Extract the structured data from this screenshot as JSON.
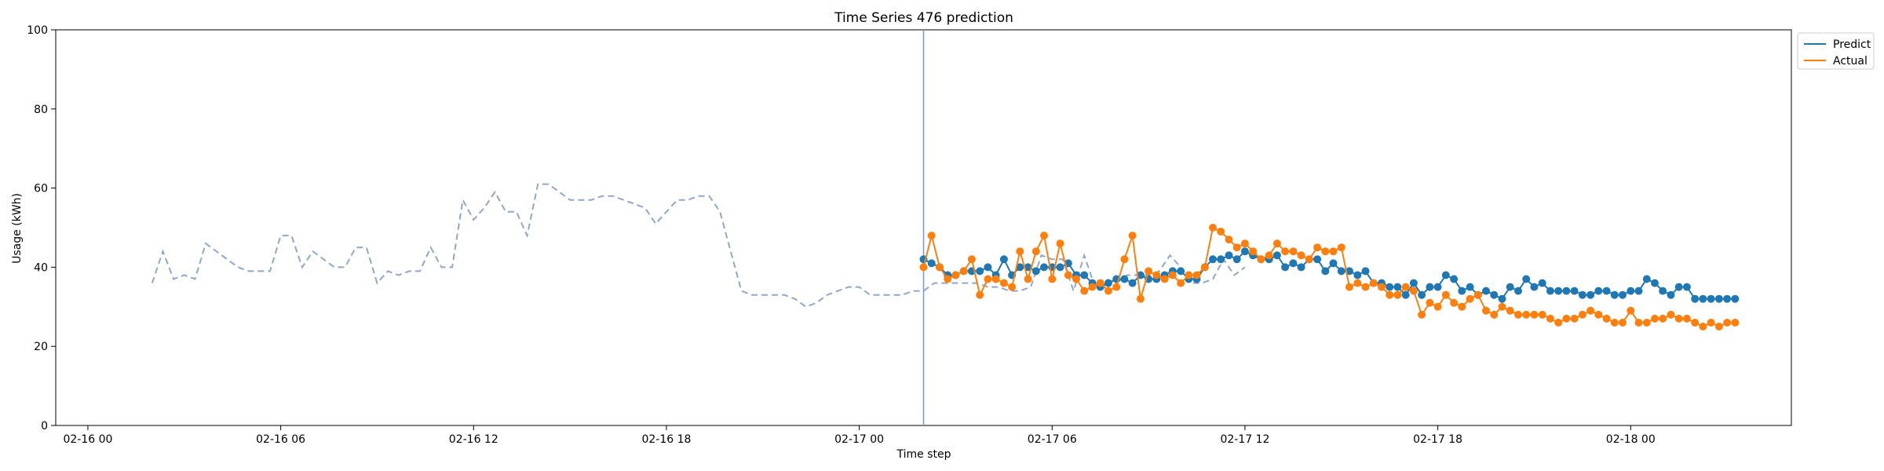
{
  "chart_data": {
    "type": "line",
    "title": "Time Series 476 prediction",
    "xlabel": "Time step",
    "ylabel": "Usage (kWh)",
    "ylim": [
      0,
      100
    ],
    "yticks": [
      0,
      20,
      40,
      60,
      80,
      100
    ],
    "xlim": [
      "02-15 23:00",
      "02-18 05:00"
    ],
    "xticks": [
      "02-16 00",
      "02-16 06",
      "02-16 12",
      "02-16 18",
      "02-17 00",
      "02-17 06",
      "02-17 12",
      "02-17 18",
      "02-18 00"
    ],
    "legend_position": "top-right",
    "grid": false,
    "forecast_start": "02-17 02:00",
    "colors": {
      "history": "#8fa8c8",
      "predict": "#1f77b4",
      "actual": "#ff7f0e",
      "divider": "#8096c8"
    },
    "history": {
      "start": "02-16 02:00",
      "step_minutes": 20,
      "values": [
        36,
        44,
        37,
        38,
        37,
        46,
        44,
        42,
        40,
        39,
        39,
        39,
        48,
        48,
        40,
        44,
        42,
        40,
        40,
        45,
        45,
        36,
        39,
        38,
        39,
        39,
        45,
        40,
        40,
        57,
        52,
        55,
        59,
        54,
        54,
        48,
        61,
        61,
        59,
        57,
        57,
        57,
        58,
        58,
        57,
        56,
        55,
        51,
        54,
        57,
        57,
        58,
        58,
        54,
        44,
        34,
        33,
        33,
        33,
        33,
        32,
        30,
        31,
        33,
        34,
        35,
        35,
        33,
        33,
        33,
        33,
        34,
        34,
        36,
        36,
        36,
        36,
        36,
        35,
        35,
        34,
        34,
        35,
        43,
        42,
        42,
        34,
        43,
        35,
        37,
        36,
        38,
        38,
        38,
        39,
        43,
        40,
        36,
        36,
        37,
        42,
        38,
        40
      ]
    },
    "series": [
      {
        "name": "Predict",
        "start": "02-17 02:00",
        "step_minutes": 15,
        "values": [
          42,
          41,
          40,
          38,
          38,
          39,
          39,
          39,
          40,
          38,
          42,
          38,
          40,
          40,
          39,
          40,
          40,
          40,
          41,
          38,
          38,
          36,
          35,
          36,
          37,
          37,
          36,
          38,
          37,
          37,
          38,
          39,
          39,
          37,
          37,
          40,
          42,
          42,
          43,
          42,
          44,
          43,
          42,
          42,
          43,
          40,
          41,
          40,
          42,
          42,
          39,
          41,
          39,
          39,
          38,
          39,
          36,
          36,
          35,
          35,
          33,
          36,
          33,
          35,
          35,
          38,
          37,
          34,
          35,
          33,
          34,
          33,
          32,
          35,
          34,
          37,
          35,
          36,
          34,
          34,
          34,
          34,
          33,
          33,
          34,
          34,
          33,
          33,
          34,
          34,
          37,
          36,
          34,
          33,
          35,
          35,
          32,
          32,
          32,
          32,
          32,
          32
        ]
      },
      {
        "name": "Actual",
        "start": "02-17 02:00",
        "step_minutes": 15,
        "values": [
          40,
          48,
          40,
          37,
          38,
          39,
          42,
          33,
          37,
          37,
          36,
          35,
          44,
          37,
          44,
          48,
          37,
          46,
          38,
          37,
          34,
          35,
          36,
          34,
          35,
          42,
          48,
          32,
          39,
          38,
          37,
          38,
          36,
          38,
          38,
          40,
          50,
          49,
          47,
          45,
          46,
          44,
          42,
          43,
          46,
          44,
          44,
          43,
          42,
          45,
          44,
          44,
          45,
          35,
          36,
          35,
          36,
          35,
          33,
          33,
          35,
          34,
          28,
          31,
          30,
          33,
          31,
          30,
          32,
          33,
          29,
          28,
          30,
          29,
          28,
          28,
          28,
          28,
          27,
          26,
          27,
          27,
          28,
          29,
          28,
          27,
          26,
          26,
          29,
          26,
          26,
          27,
          27,
          28,
          27,
          27,
          26,
          25,
          26,
          25,
          26,
          26
        ]
      }
    ]
  }
}
